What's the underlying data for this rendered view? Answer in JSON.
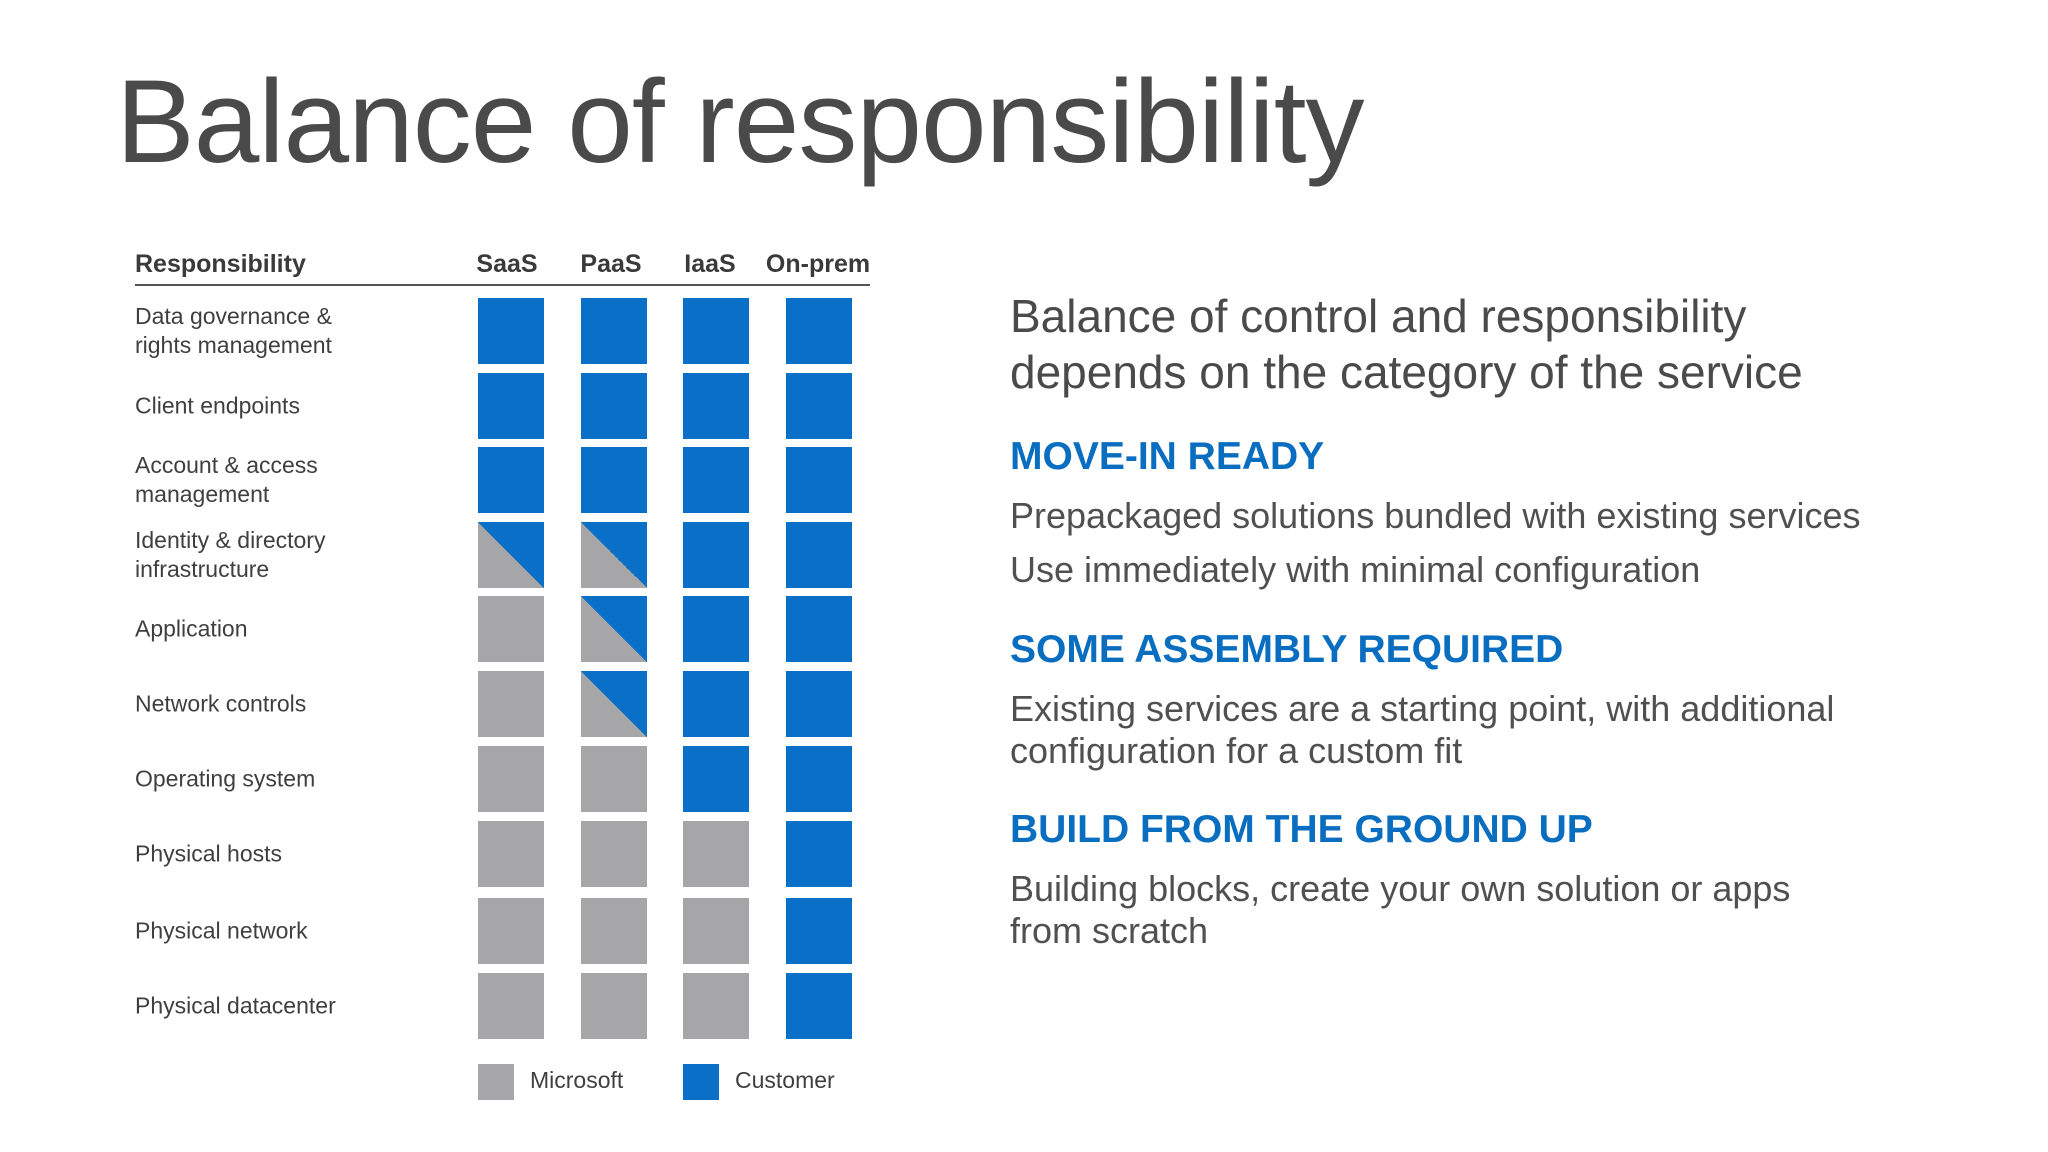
{
  "title": "Balance of responsibility",
  "table": {
    "header": {
      "responsibility": "Responsibility",
      "columns": [
        "SaaS",
        "PaaS",
        "IaaS",
        "On-prem"
      ]
    },
    "rows": [
      {
        "label_lines": [
          "Data governance &",
          "rights management"
        ],
        "cells": [
          "customer",
          "customer",
          "customer",
          "customer"
        ]
      },
      {
        "label_lines": [
          "Client endpoints"
        ],
        "cells": [
          "customer",
          "customer",
          "customer",
          "customer"
        ]
      },
      {
        "label_lines": [
          "Account & access",
          "management"
        ],
        "cells": [
          "customer",
          "customer",
          "customer",
          "customer"
        ]
      },
      {
        "label_lines": [
          "Identity & directory",
          "infrastructure"
        ],
        "cells": [
          "shared",
          "shared",
          "customer",
          "customer"
        ]
      },
      {
        "label_lines": [
          "Application"
        ],
        "cells": [
          "microsoft",
          "shared",
          "customer",
          "customer"
        ]
      },
      {
        "label_lines": [
          "Network controls"
        ],
        "cells": [
          "microsoft",
          "shared",
          "customer",
          "customer"
        ]
      },
      {
        "label_lines": [
          "Operating system"
        ],
        "cells": [
          "microsoft",
          "microsoft",
          "customer",
          "customer"
        ]
      },
      {
        "label_lines": [
          "Physical hosts"
        ],
        "cells": [
          "microsoft",
          "microsoft",
          "microsoft",
          "customer"
        ]
      },
      {
        "label_lines": [
          "Physical network"
        ],
        "cells": [
          "microsoft",
          "microsoft",
          "microsoft",
          "customer"
        ]
      },
      {
        "label_lines": [
          "Physical datacenter"
        ],
        "cells": [
          "microsoft",
          "microsoft",
          "microsoft",
          "customer"
        ]
      }
    ]
  },
  "legend": {
    "microsoft": "Microsoft",
    "customer": "Customer"
  },
  "colors": {
    "microsoft": "#a6a6a8",
    "customer": "#0a70c7",
    "heading": "#0a6ec0"
  },
  "right": {
    "lead_lines": [
      "Balance of control and responsibility",
      "depends on the category of the service"
    ],
    "sections": [
      {
        "heading": "MOVE-IN READY",
        "lines": [
          "Prepackaged solutions bundled with existing services",
          "Use immediately with minimal configuration"
        ]
      },
      {
        "heading": "SOME ASSEMBLY REQUIRED",
        "lines": [
          "Existing services are a starting point, with additional",
          "configuration for a custom fit"
        ]
      },
      {
        "heading": "BUILD FROM THE GROUND UP",
        "lines": [
          "Building blocks, create your own solution or apps",
          "from scratch"
        ]
      }
    ]
  }
}
